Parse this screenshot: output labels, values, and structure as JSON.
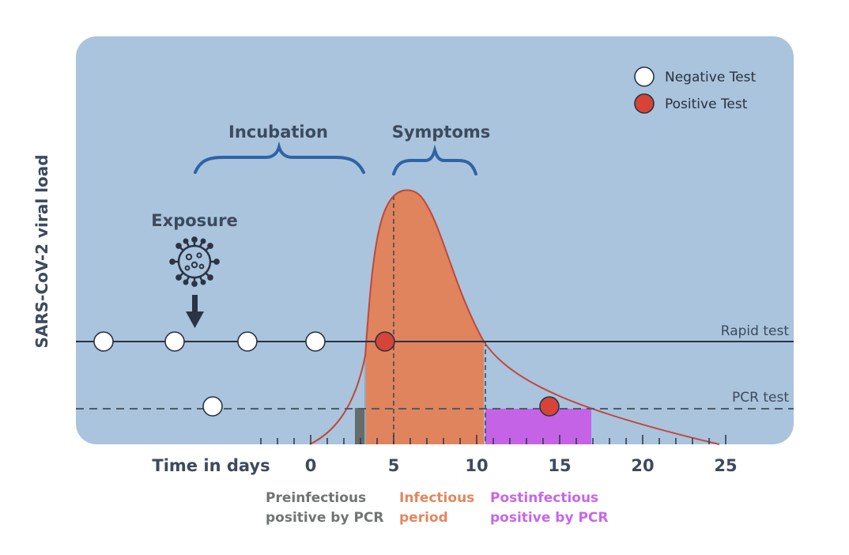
{
  "colors": {
    "panel": "#a9c4dc",
    "ink": "#3d4a5e",
    "infectious": "#e0845e",
    "preinfectious": "#656d6c",
    "postinfectious": "#c463e6",
    "curve": "#c0473c",
    "positive": "#d54436",
    "negative": "#ffffff",
    "caption_pre": "#6f7573",
    "caption_inf": "#e2875f",
    "caption_post": "#c767e7"
  },
  "labels": {
    "y_axis": "SARS-CoV-2 viral load",
    "incubation": "Incubation",
    "symptoms": "Symptoms",
    "exposure": "Exposure",
    "rapid_test": "Rapid test",
    "pcr_test": "PCR test",
    "x_axis": "Time in days",
    "legend_negative": "Negative Test",
    "legend_positive": "Positive Test",
    "pre_line1": "Preinfectious",
    "pre_line2": "positive by PCR",
    "inf_line1": "Infectious",
    "inf_line2": "period",
    "post_line1": "Postinfectious",
    "post_line2": "positive by PCR"
  },
  "icons": {
    "virus": "virus-icon",
    "exposure_arrow": "arrow-down-icon"
  },
  "chart_data": {
    "type": "line",
    "x_ticks": [
      "0",
      "5",
      "10",
      "15",
      "20",
      "25"
    ],
    "x_range": [
      -3,
      25
    ],
    "rapid_test_days": [
      -13,
      -9,
      -4,
      0,
      4
    ],
    "pcr_test_days": [
      -6,
      14
    ],
    "positive_tests": [
      {
        "test": "Rapid test",
        "day": 4
      },
      {
        "test": "PCR test",
        "day": 14
      }
    ],
    "exposure_day": -7,
    "viral_peak_day": 5,
    "preinfectious_period": [
      2.5,
      3
    ],
    "infectious_period": [
      3,
      10
    ],
    "postinfectious_period": [
      10,
      16.5
    ],
    "incubation_period": [
      -7,
      3
    ],
    "symptoms_period": [
      5,
      10
    ]
  }
}
